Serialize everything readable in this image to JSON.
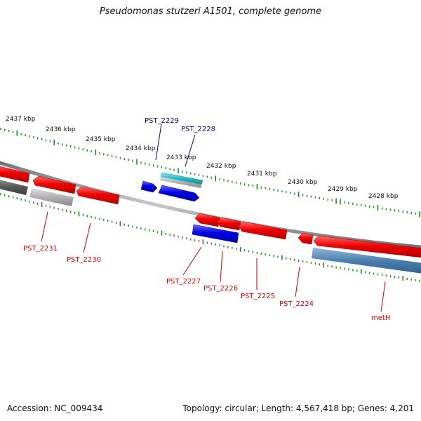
{
  "title": "Pseudomonas stutzeri A1501, complete genome",
  "footer": {
    "accession": "Accession: NC_009434",
    "summary": "Topology: circular; Length: 4,567,418 bp; Genes: 4,201"
  },
  "scale": {
    "labels": [
      "2437 kbp",
      "2436 kbp",
      "2435 kbp",
      "2434 kbp",
      "2433 kbp",
      "2432 kbp",
      "2431 kbp",
      "2430 kbp",
      "2429 kbp",
      "2428 kbp"
    ]
  },
  "gene_labels": {
    "pst_2229": "PST_2229",
    "pst_2228": "PST_2228",
    "pst_2231": "PST_2231",
    "pst_2230": "PST_2230",
    "pst_2227": "PST_2227",
    "pst_2226": "PST_2226",
    "pst_2225": "PST_2225",
    "pst_2224": "PST_2224",
    "meth": "metH"
  },
  "colors": {
    "tick": "#1e8c1e",
    "backbone": "#8c8c8c",
    "cds_red": "#e80000",
    "cds_blue": "#0000e0",
    "cds_teal": "#20b8c8",
    "cds_steel": "#4a7fb0",
    "cds_grey": "#a8a8a8",
    "cds_dark": "#5a5a5a",
    "label_red": "#cc0000",
    "label_blue": "#00008b"
  }
}
